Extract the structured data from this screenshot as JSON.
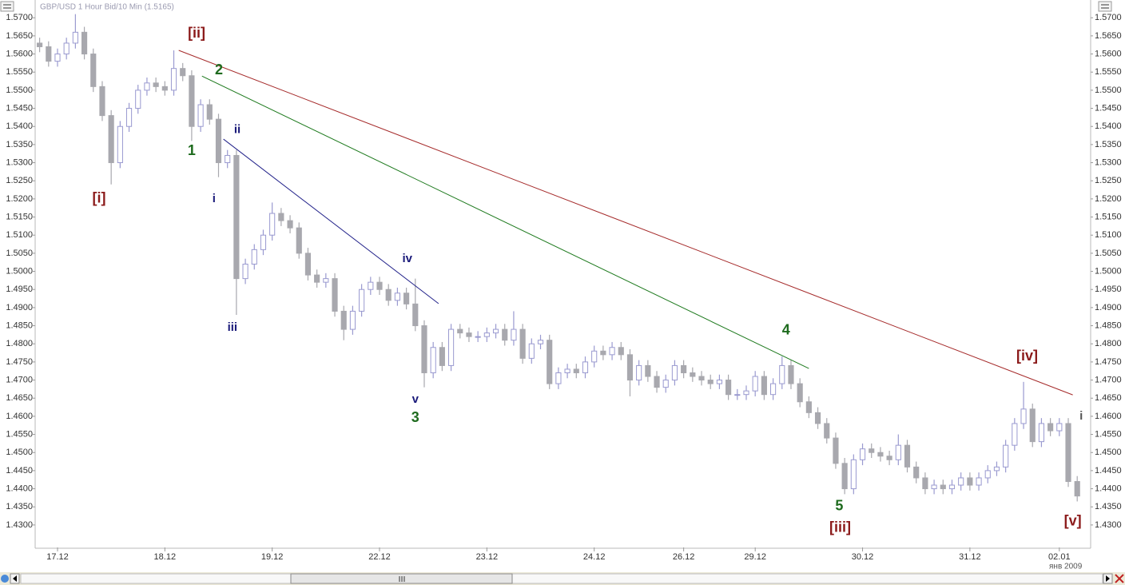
{
  "header": {
    "title": "GBP/USD 1 Hour Bid/10 Min (1.5165)"
  },
  "chart_data": {
    "type": "candlestick",
    "x": [
      1,
      3,
      5,
      7,
      9,
      11,
      13,
      15,
      17,
      19,
      21,
      23,
      25,
      27,
      29,
      31,
      33,
      35,
      37,
      39,
      41,
      43,
      45,
      47,
      49,
      51,
      53,
      55,
      57,
      59,
      61,
      63,
      65,
      67,
      69,
      71,
      73,
      75,
      77,
      79,
      81,
      83,
      85,
      87,
      89,
      91,
      93,
      95,
      97,
      99,
      101,
      103,
      105,
      107,
      109,
      111,
      113,
      115,
      117,
      119,
      121,
      123,
      125,
      127,
      129,
      131,
      133,
      135,
      137,
      139,
      141,
      143,
      145,
      147,
      149,
      151,
      153,
      155,
      157,
      159,
      161,
      163,
      165,
      167,
      169,
      171,
      173,
      175,
      177,
      179,
      181,
      183,
      185,
      187,
      189,
      191,
      193,
      195,
      197,
      199,
      201,
      203,
      205,
      207,
      209,
      211,
      213,
      215,
      217,
      219,
      221,
      223,
      225,
      227,
      229,
      231,
      233
    ],
    "open": [
      1.563,
      1.562,
      1.558,
      1.56,
      1.563,
      1.566,
      1.56,
      1.551,
      1.543,
      1.53,
      1.54,
      1.545,
      1.55,
      1.552,
      1.551,
      1.55,
      1.556,
      1.554,
      1.54,
      1.546,
      1.542,
      1.53,
      1.532,
      1.498,
      1.502,
      1.506,
      1.51,
      1.516,
      1.514,
      1.512,
      1.505,
      1.499,
      1.497,
      1.498,
      1.489,
      1.484,
      1.489,
      1.495,
      1.497,
      1.495,
      1.492,
      1.494,
      1.491,
      1.485,
      1.472,
      1.479,
      1.474,
      1.484,
      1.483,
      1.482,
      1.482,
      1.483,
      1.484,
      1.481,
      1.484,
      1.476,
      1.48,
      1.481,
      1.469,
      1.472,
      1.473,
      1.472,
      1.475,
      1.478,
      1.477,
      1.479,
      1.477,
      1.47,
      1.474,
      1.471,
      1.468,
      1.47,
      1.474,
      1.472,
      1.471,
      1.47,
      1.469,
      1.47,
      1.466,
      1.466,
      1.467,
      1.471,
      1.466,
      1.469,
      1.474,
      1.469,
      1.464,
      1.461,
      1.458,
      1.454,
      1.447,
      1.44,
      1.448,
      1.451,
      1.45,
      1.449,
      1.448,
      1.452,
      1.446,
      1.443,
      1.44,
      1.441,
      1.44,
      1.441,
      1.443,
      1.441,
      1.443,
      1.445,
      1.446,
      1.452,
      1.458,
      1.462,
      1.453,
      1.458,
      1.456,
      1.458,
      1.442
    ],
    "high": [
      1.5645,
      1.5635,
      1.5615,
      1.5645,
      1.571,
      1.5675,
      1.5615,
      1.5525,
      1.5445,
      1.5415,
      1.5465,
      1.5515,
      1.5535,
      1.5535,
      1.5525,
      1.561,
      1.5575,
      1.5555,
      1.5475,
      1.5475,
      1.5435,
      1.5335,
      1.5335,
      1.5035,
      1.5075,
      1.5115,
      1.519,
      1.5175,
      1.5155,
      1.5135,
      1.5065,
      1.5005,
      1.4995,
      1.4995,
      1.4905,
      1.4905,
      1.4965,
      1.4985,
      1.4985,
      1.4965,
      1.4955,
      1.4955,
      1.498,
      1.4865,
      1.4805,
      1.4805,
      1.4855,
      1.4855,
      1.4845,
      1.4835,
      1.4845,
      1.4855,
      1.4855,
      1.489,
      1.4855,
      1.4815,
      1.4825,
      1.4825,
      1.4735,
      1.4745,
      1.4745,
      1.4765,
      1.4795,
      1.4795,
      1.4805,
      1.4805,
      1.4785,
      1.4755,
      1.4755,
      1.4725,
      1.4715,
      1.4755,
      1.4755,
      1.4735,
      1.4725,
      1.4715,
      1.4715,
      1.4715,
      1.4675,
      1.4685,
      1.4725,
      1.4725,
      1.4705,
      1.4765,
      1.4755,
      1.4705,
      1.4655,
      1.4625,
      1.4595,
      1.4555,
      1.4485,
      1.4495,
      1.4525,
      1.4525,
      1.4515,
      1.4505,
      1.455,
      1.4535,
      1.4475,
      1.4445,
      1.4425,
      1.4425,
      1.4425,
      1.4445,
      1.4445,
      1.4445,
      1.4465,
      1.4475,
      1.4535,
      1.4595,
      1.4695,
      1.4635,
      1.4595,
      1.4595,
      1.4595,
      1.4595,
      1.4435
    ],
    "low": [
      1.5605,
      1.5565,
      1.5565,
      1.5585,
      1.5615,
      1.5585,
      1.5495,
      1.5415,
      1.524,
      1.5285,
      1.5385,
      1.5435,
      1.5485,
      1.5495,
      1.5485,
      1.5485,
      1.5525,
      1.536,
      1.5385,
      1.5405,
      1.526,
      1.5285,
      1.488,
      1.4965,
      1.5005,
      1.5045,
      1.5085,
      1.5125,
      1.5105,
      1.5035,
      1.4975,
      1.4955,
      1.4955,
      1.4875,
      1.481,
      1.4825,
      1.4875,
      1.4935,
      1.4935,
      1.4905,
      1.4905,
      1.4895,
      1.4835,
      1.468,
      1.4705,
      1.4725,
      1.4725,
      1.4815,
      1.4805,
      1.4805,
      1.4805,
      1.4815,
      1.4795,
      1.4795,
      1.4745,
      1.4745,
      1.4785,
      1.4675,
      1.4675,
      1.4705,
      1.4705,
      1.4705,
      1.4735,
      1.4755,
      1.4755,
      1.4755,
      1.4655,
      1.4685,
      1.4695,
      1.4665,
      1.4665,
      1.4685,
      1.4705,
      1.4695,
      1.4685,
      1.4675,
      1.4675,
      1.4645,
      1.4645,
      1.4645,
      1.4655,
      1.4645,
      1.4645,
      1.4675,
      1.4675,
      1.4625,
      1.4595,
      1.4565,
      1.4525,
      1.4455,
      1.4385,
      1.4385,
      1.4465,
      1.4485,
      1.4475,
      1.4465,
      1.4465,
      1.4445,
      1.4415,
      1.4385,
      1.4385,
      1.4385,
      1.4385,
      1.4395,
      1.4395,
      1.4395,
      1.4415,
      1.4435,
      1.4445,
      1.4505,
      1.4565,
      1.4515,
      1.4515,
      1.4545,
      1.4545,
      1.4405,
      1.4365
    ],
    "close": [
      1.562,
      1.558,
      1.56,
      1.563,
      1.566,
      1.56,
      1.551,
      1.543,
      1.53,
      1.54,
      1.545,
      1.55,
      1.552,
      1.551,
      1.55,
      1.556,
      1.554,
      1.54,
      1.546,
      1.542,
      1.53,
      1.532,
      1.498,
      1.502,
      1.506,
      1.51,
      1.516,
      1.514,
      1.512,
      1.505,
      1.499,
      1.497,
      1.498,
      1.489,
      1.484,
      1.489,
      1.495,
      1.497,
      1.495,
      1.492,
      1.494,
      1.491,
      1.485,
      1.472,
      1.479,
      1.474,
      1.484,
      1.483,
      1.482,
      1.482,
      1.483,
      1.484,
      1.481,
      1.484,
      1.476,
      1.48,
      1.481,
      1.469,
      1.472,
      1.473,
      1.472,
      1.475,
      1.478,
      1.477,
      1.479,
      1.477,
      1.47,
      1.474,
      1.471,
      1.468,
      1.47,
      1.474,
      1.472,
      1.471,
      1.47,
      1.469,
      1.47,
      1.466,
      1.466,
      1.467,
      1.471,
      1.466,
      1.469,
      1.474,
      1.469,
      1.464,
      1.461,
      1.458,
      1.454,
      1.447,
      1.44,
      1.448,
      1.451,
      1.45,
      1.449,
      1.448,
      1.452,
      1.446,
      1.443,
      1.44,
      1.441,
      1.44,
      1.441,
      1.443,
      1.441,
      1.443,
      1.445,
      1.446,
      1.452,
      1.458,
      1.462,
      1.453,
      1.458,
      1.456,
      1.458,
      1.442,
      1.438
    ],
    "up_color": "#ffffff",
    "up_stroke": "#9a9ad0",
    "down_color": "#a8a8ae",
    "xlim": [
      0,
      236
    ],
    "xticks": [
      {
        "value": 5,
        "label": "17.12"
      },
      {
        "value": 29,
        "label": "18.12"
      },
      {
        "value": 53,
        "label": "19.12"
      },
      {
        "value": 77,
        "label": "22.12"
      },
      {
        "value": 101,
        "label": "23.12"
      },
      {
        "value": 125,
        "label": "24.12"
      },
      {
        "value": 145,
        "label": "26.12"
      },
      {
        "value": 161,
        "label": "29.12"
      },
      {
        "value": 185,
        "label": "30.12"
      },
      {
        "value": 209,
        "label": "31.12"
      },
      {
        "value": 229,
        "label": "02.01"
      }
    ],
    "year_label": "янв 2009",
    "ylim": [
      1.4238,
      1.5749
    ],
    "yticks": [
      {
        "value": 1.43,
        "label": "1.4300"
      },
      {
        "value": 1.435,
        "label": "1.4350"
      },
      {
        "value": 1.44,
        "label": "1.4400"
      },
      {
        "value": 1.445,
        "label": "1.4450"
      },
      {
        "value": 1.45,
        "label": "1.4500"
      },
      {
        "value": 1.455,
        "label": "1.4550"
      },
      {
        "value": 1.46,
        "label": "1.4600"
      },
      {
        "value": 1.465,
        "label": "1.4650"
      },
      {
        "value": 1.47,
        "label": "1.4700"
      },
      {
        "value": 1.475,
        "label": "1.4750"
      },
      {
        "value": 1.48,
        "label": "1.4800"
      },
      {
        "value": 1.485,
        "label": "1.4850"
      },
      {
        "value": 1.49,
        "label": "1.4900"
      },
      {
        "value": 1.495,
        "label": "1.4950"
      },
      {
        "value": 1.5,
        "label": "1.5000"
      },
      {
        "value": 1.505,
        "label": "1.5050"
      },
      {
        "value": 1.51,
        "label": "1.5100"
      },
      {
        "value": 1.515,
        "label": "1.5150"
      },
      {
        "value": 1.52,
        "label": "1.5200"
      },
      {
        "value": 1.525,
        "label": "1.5250"
      },
      {
        "value": 1.53,
        "label": "1.5300"
      },
      {
        "value": 1.535,
        "label": "1.5350"
      },
      {
        "value": 1.54,
        "label": "1.5400"
      },
      {
        "value": 1.545,
        "label": "1.5450"
      },
      {
        "value": 1.55,
        "label": "1.5500"
      },
      {
        "value": 1.555,
        "label": "1.5550"
      },
      {
        "value": 1.56,
        "label": "1.5600"
      },
      {
        "value": 1.565,
        "label": "1.5650"
      },
      {
        "value": 1.57,
        "label": "1.5700"
      }
    ],
    "trendlines": [
      {
        "x": [
          32.1,
          232
        ],
        "y": [
          1.561,
          1.4659
        ],
        "color": "#a52a2a"
      },
      {
        "x": [
          37.3,
          173
        ],
        "y": [
          1.5539,
          1.4732
        ],
        "color": "#1e7a1e"
      },
      {
        "x": [
          42.1,
          90.2
        ],
        "y": [
          1.5365,
          1.4911
        ],
        "color": "#22228a"
      }
    ],
    "annotations": [
      {
        "text": "[ii]",
        "x": 36.1,
        "y": 1.5656,
        "color": "#8b1a1a"
      },
      {
        "text": "[i]",
        "x": 14.3,
        "y": 1.52,
        "color": "#8b1a1a"
      },
      {
        "text": "2",
        "x": 41.1,
        "y": 1.5554,
        "color": "#1e6b1e"
      },
      {
        "text": "1",
        "x": 35,
        "y": 1.5332,
        "color": "#1e6b1e"
      },
      {
        "text": "ii",
        "x": 45.2,
        "y": 1.5391,
        "color": "#1a1a7a"
      },
      {
        "text": "i",
        "x": 40,
        "y": 1.52,
        "color": "#1a1a7a"
      },
      {
        "text": "iii",
        "x": 44.1,
        "y": 1.4845,
        "color": "#1a1a7a"
      },
      {
        "text": "iv",
        "x": 83.2,
        "y": 1.5034,
        "color": "#1a1a7a"
      },
      {
        "text": "v",
        "x": 85,
        "y": 1.4646,
        "color": "#1a1a7a"
      },
      {
        "text": "3",
        "x": 85,
        "y": 1.4595,
        "color": "#1e6b1e"
      },
      {
        "text": "4",
        "x": 167.9,
        "y": 1.4836,
        "color": "#1e6b1e"
      },
      {
        "text": "5",
        "x": 179.8,
        "y": 1.4351,
        "color": "#1e6b1e"
      },
      {
        "text": "[iii]",
        "x": 180,
        "y": 1.4291,
        "color": "#8b1a1a"
      },
      {
        "text": "[iv]",
        "x": 221.8,
        "y": 1.4765,
        "color": "#8b1a1a"
      },
      {
        "text": "[v]",
        "x": 232,
        "y": 1.4309,
        "color": "#8b1a1a"
      },
      {
        "text": "i",
        "x": 233.9,
        "y": 1.46,
        "color": "#555555"
      }
    ]
  }
}
